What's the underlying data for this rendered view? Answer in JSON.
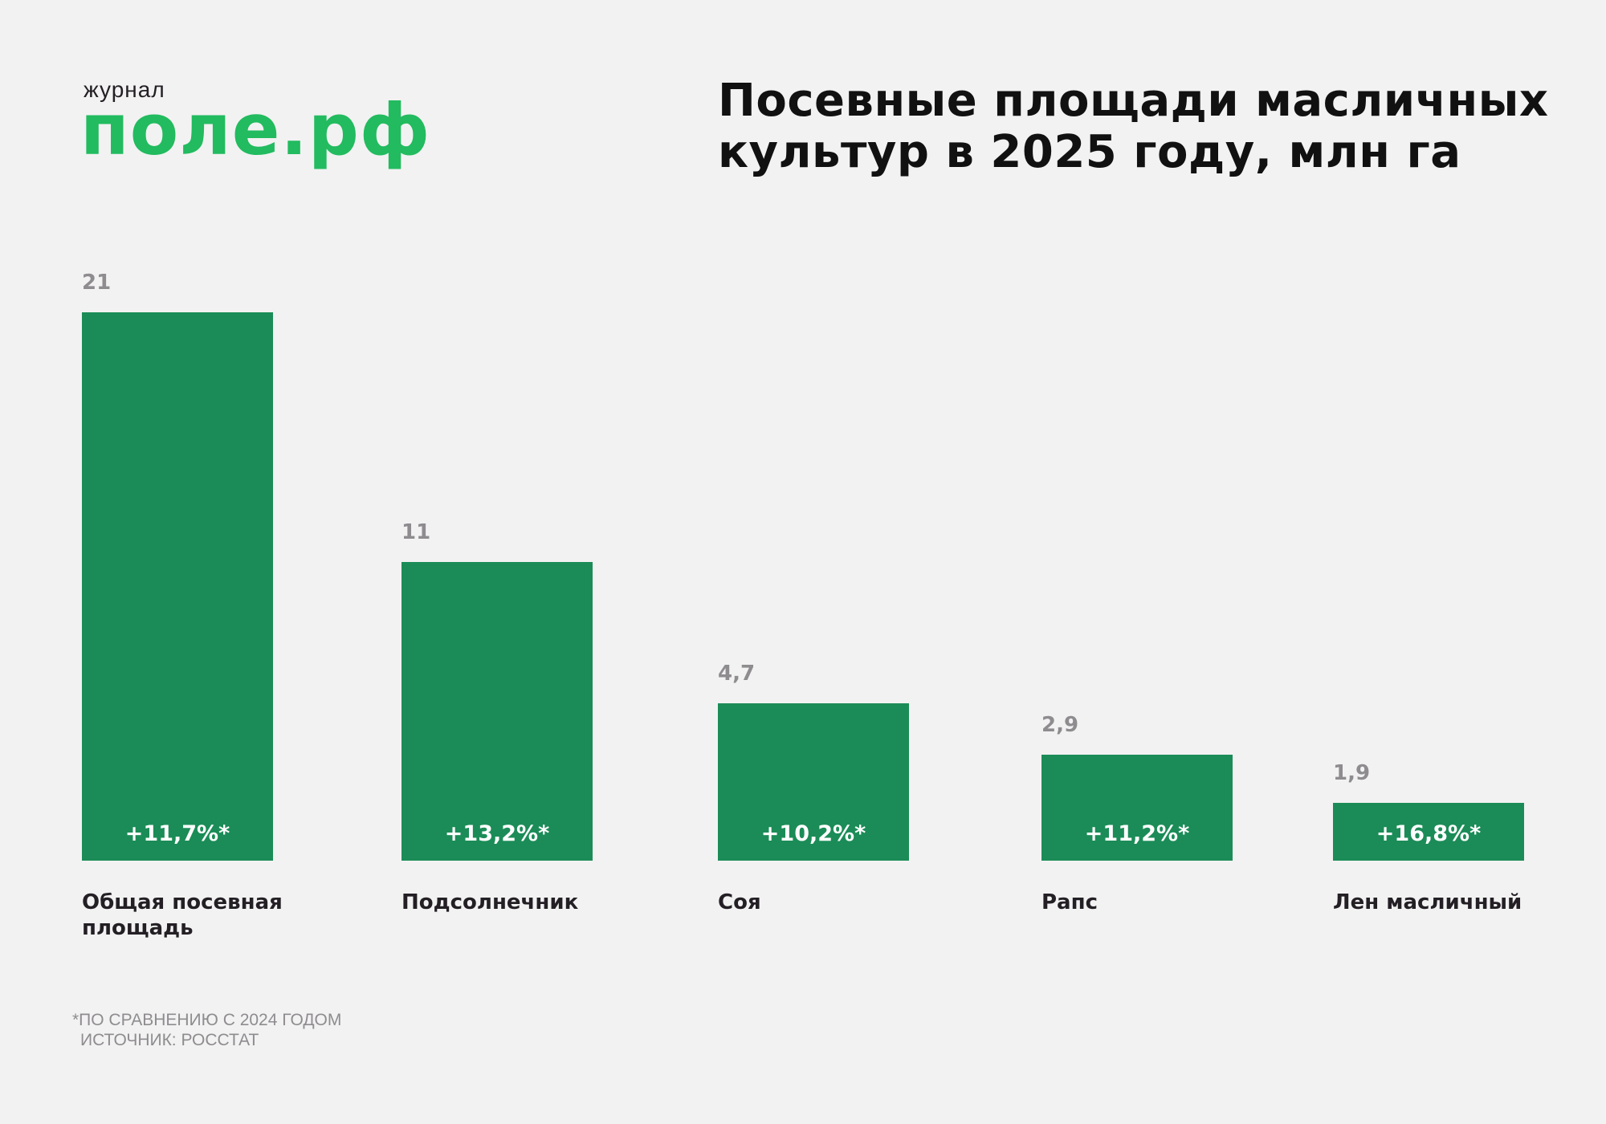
{
  "logo": {
    "small": "журнал",
    "big": "поле.рф",
    "color": "#22bb5f"
  },
  "title": "Посевные площади масличных культур в 2025 году, млн га",
  "chart_data": {
    "type": "bar",
    "title": "Посевные площади масличных культур в 2025 году, млн га",
    "categories": [
      "Общая посевная площадь",
      "Подсолнечник",
      "Соя",
      "Рапс",
      "Лен масличный"
    ],
    "values": [
      21,
      11,
      4.7,
      2.9,
      1.9
    ],
    "value_labels": [
      "21",
      "11",
      "4,7",
      "2,9",
      "1,9"
    ],
    "change_vs_2024": [
      "+11,7%*",
      "+13,2%*",
      "+10,2%*",
      "+11,2%*",
      "+16,8%*"
    ],
    "xlabel": "",
    "ylabel": "млн га",
    "grid": false,
    "legend": null,
    "bar_color": "#1b8c57"
  },
  "bars": [
    {
      "value": "21",
      "change": "+11,7%*",
      "label": "Общая посевная площадь"
    },
    {
      "value": "11",
      "change": "+13,2%*",
      "label": "Подсолнечник"
    },
    {
      "value": "4,7",
      "change": "+10,2%*",
      "label": "Соя"
    },
    {
      "value": "2,9",
      "change": "+11,2%*",
      "label": "Рапс"
    },
    {
      "value": "1,9",
      "change": "+16,8%*",
      "label": "Лен масличный"
    }
  ],
  "footnote": {
    "note": "*ПО СРАВНЕНИЮ С 2024 ГОДОМ",
    "source": "ИСТОЧНИК: РОССТАТ"
  }
}
